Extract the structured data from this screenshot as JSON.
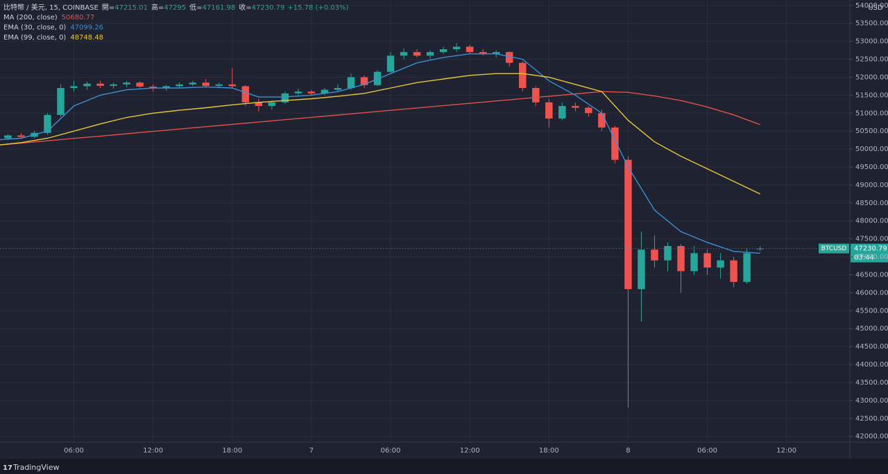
{
  "chart_data": {
    "type": "candlestick",
    "title": "比特幣 / 美元, 15, COINBASE",
    "ohlc_labels": [
      "開=",
      "高=",
      "低=",
      "收="
    ],
    "change": "+15.78 (+0.03%)",
    "symbol": "BTCUSD",
    "countdown": "03:44",
    "y_unit": "USD",
    "brand": "TradingView",
    "up_color": "#26a69a",
    "down_color": "#ef5350",
    "grid": true,
    "x": [
      1,
      2,
      3,
      4,
      5,
      6,
      7,
      8,
      9,
      10,
      11,
      12,
      13,
      14,
      15,
      16,
      17,
      18,
      19,
      20,
      21,
      22,
      23,
      24,
      25,
      26,
      27,
      28,
      29,
      30,
      31,
      32,
      33,
      34,
      35,
      36,
      37,
      38,
      39,
      40,
      41,
      42,
      43,
      44,
      45,
      46,
      47,
      48,
      49,
      50,
      51,
      52,
      53,
      54,
      55,
      56,
      57,
      58
    ],
    "open": [
      50300,
      50380,
      50340,
      50450,
      50950,
      51700,
      51750,
      51820,
      51760,
      51800,
      51850,
      51740,
      51700,
      51750,
      51800,
      51850,
      51760,
      51800,
      51750,
      51300,
      51200,
      51300,
      51550,
      51600,
      51550,
      51650,
      51700,
      52000,
      51780,
      52150,
      52600,
      52700,
      52600,
      52700,
      52780,
      52850,
      52700,
      52650,
      52700,
      52400,
      51700,
      51300,
      50850,
      51200,
      51150,
      51000,
      50600,
      49700,
      46100,
      47200,
      46900,
      47300,
      46600,
      47100,
      46700,
      46900,
      46300,
      47215.01
    ],
    "high": [
      50420,
      50450,
      50500,
      51000,
      51800,
      51900,
      51880,
      51900,
      51850,
      51900,
      51880,
      51800,
      51780,
      51850,
      51900,
      51950,
      51850,
      52250,
      51780,
      51400,
      51350,
      51600,
      51680,
      51650,
      51700,
      51800,
      52100,
      52050,
      52200,
      52700,
      52800,
      52780,
      52750,
      52850,
      52950,
      52900,
      52780,
      52750,
      52720,
      52450,
      51750,
      51400,
      51300,
      51300,
      51200,
      51100,
      50650,
      49800,
      47700,
      47600,
      47400,
      47350,
      47300,
      47200,
      47100,
      47000,
      47250,
      47295.0
    ],
    "low": [
      50250,
      50300,
      50300,
      50400,
      50900,
      51600,
      51650,
      51700,
      51680,
      51720,
      51700,
      51600,
      51620,
      51700,
      51750,
      51720,
      51700,
      51700,
      51200,
      51050,
      51100,
      51250,
      51500,
      51480,
      51500,
      51600,
      51650,
      51700,
      51750,
      52100,
      52500,
      52550,
      52500,
      52650,
      52700,
      52650,
      52600,
      52550,
      52300,
      51600,
      51200,
      50600,
      50800,
      51050,
      50900,
      50500,
      49600,
      42800,
      45200,
      46700,
      46600,
      46000,
      46500,
      46500,
      46400,
      46150,
      46250,
      47161.98
    ],
    "close": [
      50380,
      50340,
      50450,
      50950,
      51700,
      51750,
      51820,
      51760,
      51800,
      51850,
      51740,
      51700,
      51750,
      51800,
      51850,
      51760,
      51800,
      51750,
      51300,
      51200,
      51300,
      51550,
      51600,
      51550,
      51650,
      51700,
      52000,
      51780,
      52150,
      52600,
      52700,
      52600,
      52700,
      52780,
      52850,
      52700,
      52650,
      52700,
      52400,
      51700,
      51300,
      50850,
      51200,
      51150,
      51000,
      50600,
      49700,
      46100,
      47200,
      46900,
      47300,
      46600,
      47100,
      46700,
      46900,
      46300,
      47100,
      47230.79
    ],
    "lines": [
      {
        "name": "MA (200, close)",
        "color": "#e0524a",
        "x": [
          0,
          2,
          4,
          6,
          8,
          10,
          12,
          14,
          16,
          18,
          20,
          22,
          24,
          26,
          28,
          30,
          32,
          34,
          36,
          38,
          40,
          42,
          44,
          46,
          48,
          50,
          52,
          54,
          56,
          58
        ],
        "values": [
          50100,
          50165,
          50230,
          50296,
          50361,
          50426,
          50491,
          50557,
          50622,
          50687,
          50752,
          50817,
          50883,
          50948,
          51013,
          51078,
          51143,
          51209,
          51274,
          51339,
          51404,
          51470,
          51535,
          51600,
          51580,
          51480,
          51350,
          51170,
          50950,
          50680.77
        ]
      },
      {
        "name": "EMA (30, close, 0)",
        "color": "#3d8fd6",
        "x": [
          0,
          2,
          4,
          6,
          8,
          10,
          12,
          14,
          16,
          18,
          20,
          22,
          24,
          26,
          28,
          30,
          32,
          34,
          36,
          38,
          40,
          42,
          44,
          46,
          48,
          50,
          52,
          54,
          56,
          58
        ],
        "values": [
          50250,
          50300,
          50500,
          51200,
          51500,
          51650,
          51700,
          51700,
          51730,
          51700,
          51450,
          51450,
          51500,
          51600,
          51800,
          52100,
          52400,
          52550,
          52650,
          52650,
          52500,
          51900,
          51500,
          51000,
          49500,
          48300,
          47700,
          47400,
          47150,
          47099.26
        ]
      },
      {
        "name": "EMA (99, close, 0)",
        "color": "#e8c93a",
        "x": [
          0,
          2,
          4,
          6,
          8,
          10,
          12,
          14,
          16,
          18,
          20,
          22,
          24,
          26,
          28,
          30,
          32,
          34,
          36,
          38,
          40,
          42,
          44,
          46,
          48,
          50,
          52,
          54,
          56,
          58
        ],
        "values": [
          50100,
          50180,
          50300,
          50500,
          50700,
          50880,
          51000,
          51080,
          51150,
          51230,
          51300,
          51350,
          51400,
          51470,
          51550,
          51700,
          51850,
          51950,
          52050,
          52100,
          52100,
          52000,
          51800,
          51600,
          50800,
          50200,
          49800,
          49450,
          49100,
          48748.48
        ]
      }
    ],
    "xlim": [
      0.4,
      64.8
    ],
    "xticks": [
      {
        "value": 6,
        "label": "06:00"
      },
      {
        "value": 12,
        "label": "12:00"
      },
      {
        "value": 18,
        "label": "18:00"
      },
      {
        "value": 24,
        "label": "7"
      },
      {
        "value": 30,
        "label": "06:00"
      },
      {
        "value": 36,
        "label": "12:00"
      },
      {
        "value": 42,
        "label": "18:00"
      },
      {
        "value": 48,
        "label": "8"
      },
      {
        "value": 54,
        "label": "06:00"
      },
      {
        "value": 60,
        "label": "12:00"
      }
    ],
    "ylim": [
      41840,
      54150
    ],
    "yticks": [
      {
        "value": 42000,
        "label": "42000.00"
      },
      {
        "value": 42500,
        "label": "42500.00"
      },
      {
        "value": 43000,
        "label": "43000.00"
      },
      {
        "value": 43500,
        "label": "43500.00"
      },
      {
        "value": 44000,
        "label": "44000.00"
      },
      {
        "value": 44500,
        "label": "44500.00"
      },
      {
        "value": 45000,
        "label": "45000.00"
      },
      {
        "value": 45500,
        "label": "45500.00"
      },
      {
        "value": 46000,
        "label": "46000.00"
      },
      {
        "value": 46500,
        "label": "46500.00"
      },
      {
        "value": 47000,
        "label": "47000.00"
      },
      {
        "value": 47500,
        "label": "47500.00"
      },
      {
        "value": 48000,
        "label": "48000.00"
      },
      {
        "value": 48500,
        "label": "48500.00"
      },
      {
        "value": 49000,
        "label": "49000.00"
      },
      {
        "value": 49500,
        "label": "49500.00"
      },
      {
        "value": 50000,
        "label": "50000.00"
      },
      {
        "value": 50500,
        "label": "50500.00"
      },
      {
        "value": 51000,
        "label": "51000.00"
      },
      {
        "value": 51500,
        "label": "51500.00"
      },
      {
        "value": 52000,
        "label": "52000.00"
      },
      {
        "value": 52500,
        "label": "52500.00"
      },
      {
        "value": 53000,
        "label": "53000.00"
      },
      {
        "value": 53500,
        "label": "53500.00"
      },
      {
        "value": 54000,
        "label": "54000.00"
      }
    ]
  }
}
